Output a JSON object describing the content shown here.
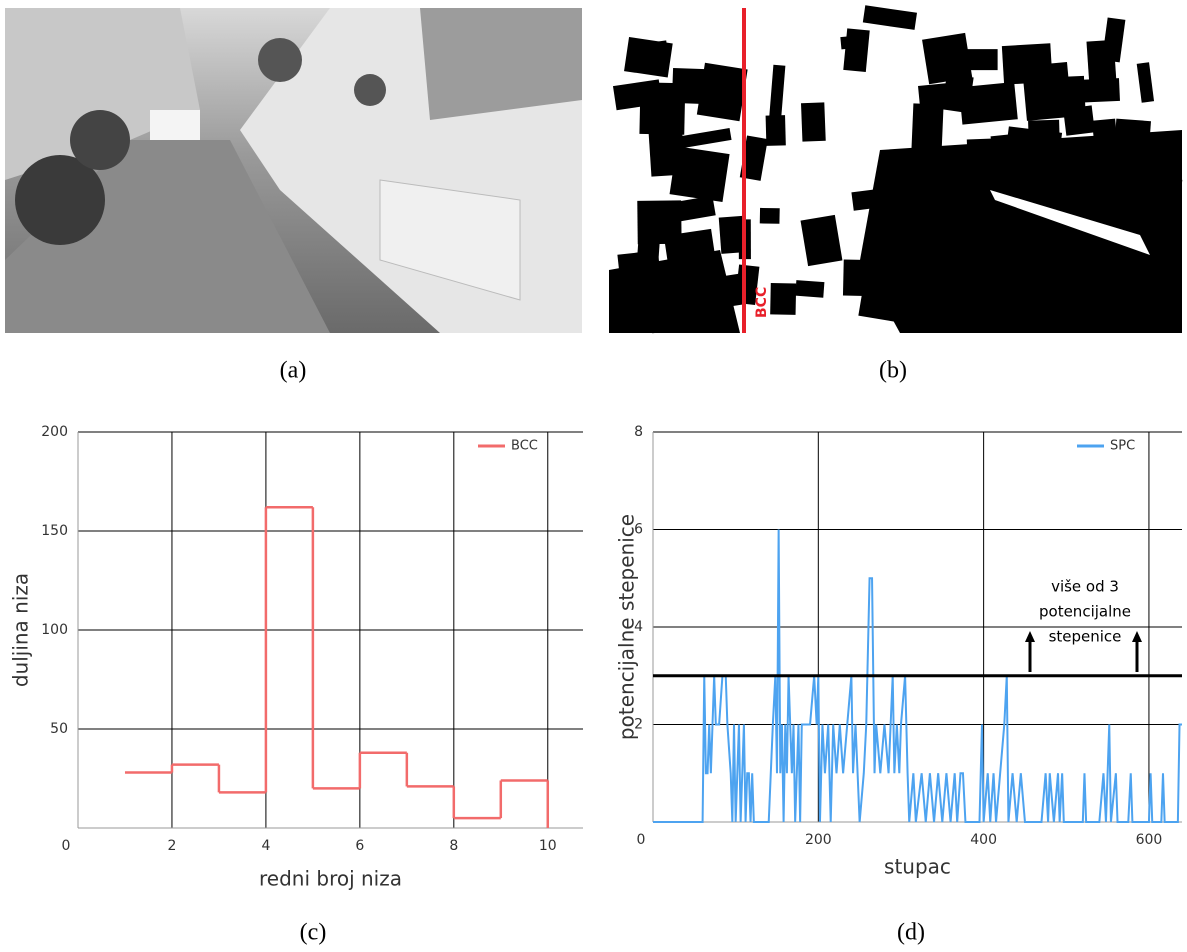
{
  "panels": {
    "captions": [
      "(a)",
      "(b)",
      "(c)",
      "(d)"
    ],
    "marker_label": "BCC"
  },
  "chart_data": [
    {
      "type": "line",
      "step": "post",
      "x": [
        1,
        2,
        3,
        4,
        5,
        6,
        7,
        8,
        9,
        10
      ],
      "series": [
        {
          "name": "BCC",
          "color": "#f26b6b",
          "values": [
            28,
            32,
            18,
            162,
            20,
            38,
            21,
            5,
            24,
            0
          ]
        }
      ],
      "xlabel": "redni broj niza",
      "ylabel": "duljina niza",
      "xlim": [
        0,
        10.75
      ],
      "ylim": [
        0,
        200
      ],
      "xticks": [
        0,
        2,
        4,
        6,
        8,
        10
      ],
      "yticks": [
        50,
        100,
        150,
        200
      ],
      "grid": true,
      "legend": "upper right"
    },
    {
      "type": "line",
      "x": [
        0,
        60,
        62,
        64,
        66,
        68,
        70,
        72,
        74,
        76,
        80,
        84,
        88,
        90,
        94,
        96,
        98,
        100,
        102,
        104,
        106,
        108,
        110,
        112,
        114,
        116,
        118,
        120,
        122,
        140,
        145,
        148,
        150,
        152,
        154,
        156,
        158,
        160,
        162,
        164,
        166,
        168,
        170,
        172,
        174,
        176,
        178,
        180,
        185,
        190,
        195,
        198,
        200,
        202,
        205,
        208,
        212,
        215,
        218,
        222,
        226,
        230,
        235,
        240,
        242,
        245,
        250,
        255,
        258,
        262,
        265,
        268,
        270,
        275,
        280,
        285,
        290,
        292,
        295,
        298,
        300,
        305,
        308,
        310,
        315,
        318,
        325,
        330,
        335,
        340,
        345,
        350,
        355,
        360,
        365,
        368,
        372,
        375,
        378,
        395,
        398,
        400,
        405,
        408,
        412,
        415,
        420,
        425,
        428,
        430,
        435,
        440,
        445,
        450,
        470,
        475,
        478,
        480,
        485,
        490,
        492,
        495,
        497,
        520,
        522,
        524,
        540,
        545,
        548,
        552,
        554,
        560,
        562,
        575,
        578,
        580,
        600,
        602,
        604,
        615,
        617,
        619,
        635,
        637,
        640
      ],
      "series": [
        {
          "name": "SPC",
          "color": "#4da3f0",
          "values": [
            0,
            0,
            3,
            1,
            1,
            2,
            1,
            2,
            3,
            2,
            2,
            3,
            3,
            2,
            1,
            0,
            2,
            0,
            1,
            2,
            0,
            1,
            2,
            0,
            1,
            1,
            0,
            1,
            0,
            0,
            2,
            3,
            1,
            6,
            1,
            2,
            0,
            2,
            1,
            3,
            2,
            1,
            2,
            0,
            1,
            2,
            0,
            2,
            2,
            2,
            3,
            2,
            3,
            0,
            2,
            1,
            2,
            0,
            2,
            1,
            2,
            1,
            2,
            3,
            1,
            2,
            0,
            1,
            2,
            5,
            5,
            1,
            2,
            1,
            2,
            1,
            3,
            1,
            2,
            1,
            2,
            3,
            1,
            0,
            1,
            0,
            1,
            0,
            1,
            0,
            1,
            0,
            1,
            0,
            1,
            0,
            1,
            1,
            0,
            0,
            2,
            0,
            1,
            0,
            1,
            0,
            1,
            2,
            3,
            0,
            1,
            0,
            1,
            0,
            0,
            1,
            0,
            1,
            0,
            1,
            0,
            1,
            0,
            0,
            1,
            0,
            0,
            1,
            0,
            2,
            0,
            1,
            0,
            0,
            1,
            0,
            0,
            1,
            0,
            0,
            1,
            0,
            0,
            2,
            2
          ]
        }
      ],
      "xlabel": "stupac",
      "ylabel": "potencijalne stepenice",
      "xlim": [
        0,
        640
      ],
      "ylim": [
        0,
        8
      ],
      "xticks": [
        0,
        200,
        400,
        600
      ],
      "yticks": [
        2,
        4,
        6,
        8
      ],
      "grid": true,
      "legend": "upper right",
      "threshold": 3,
      "annotation": [
        "više od 3",
        "potencijalne",
        "stepenice"
      ]
    }
  ]
}
